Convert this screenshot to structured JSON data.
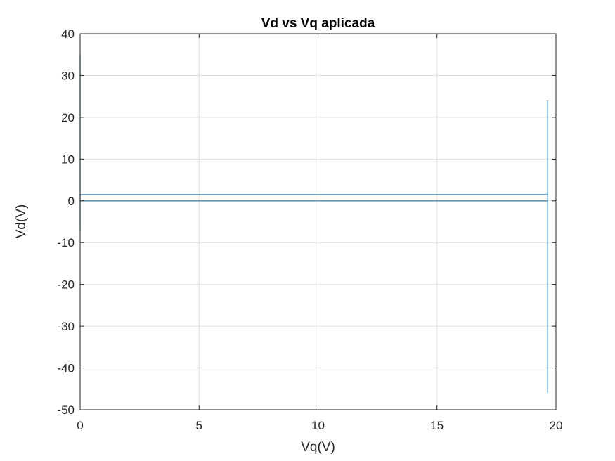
{
  "chart_data": {
    "type": "line",
    "title": "Vd vs Vq aplicada",
    "xlabel": "Vq(V)",
    "ylabel": "Vd(V)",
    "xlim": [
      0,
      20
    ],
    "ylim": [
      -50,
      40
    ],
    "xticks": [
      0,
      5,
      10,
      15,
      20
    ],
    "yticks": [
      -50,
      -40,
      -30,
      -20,
      -10,
      0,
      10,
      20,
      30,
      40
    ],
    "grid": true,
    "line_color": "#3f88b3",
    "series": [
      {
        "x": [
          0,
          0,
          0,
          0,
          19.65,
          19.65,
          19.65,
          19.65,
          19.65,
          0,
          0,
          0
        ],
        "y": [
          -7,
          35,
          0,
          0,
          0,
          24,
          -46,
          1.5,
          1.5,
          1.5,
          -7,
          0
        ]
      }
    ]
  }
}
